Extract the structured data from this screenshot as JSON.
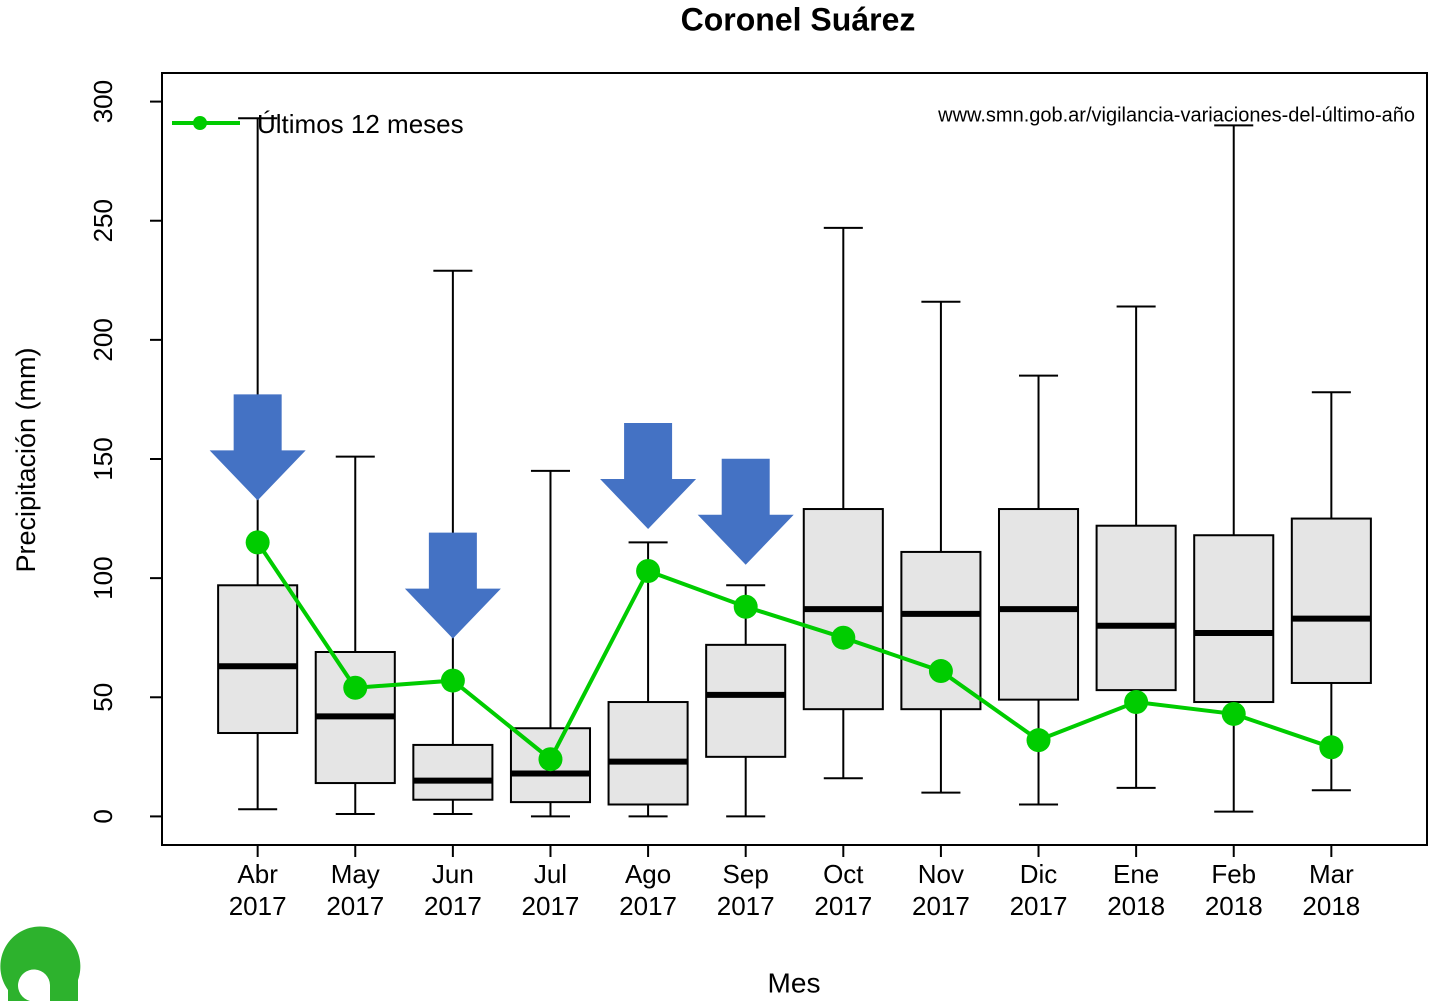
{
  "chart_data": {
    "type": "boxplot",
    "title": "Coronel Suárez",
    "y_label": "Precipitación (mm)",
    "x_label": "Mes",
    "source": "www.smn.gob.ar/vigilancia-variaciones-del-último-año",
    "categories": [
      "Abr\n2017",
      "May\n2017",
      "Jun\n2017",
      "Jul\n2017",
      "Ago\n2017",
      "Sep\n2017",
      "Oct\n2017",
      "Nov\n2017",
      "Dic\n2017",
      "Ene\n2018",
      "Feb\n2018",
      "Mar\n2018"
    ],
    "boxes": {
      "whisker_low": [
        3,
        1,
        1,
        0,
        0,
        0,
        16,
        10,
        5,
        12,
        2,
        11
      ],
      "q1": [
        35,
        14,
        7,
        6,
        5,
        25,
        45,
        45,
        49,
        53,
        48,
        56
      ],
      "median": [
        63,
        42,
        15,
        18,
        23,
        51,
        87,
        85,
        87,
        80,
        77,
        83
      ],
      "q3": [
        97,
        69,
        30,
        37,
        48,
        72,
        129,
        111,
        129,
        122,
        118,
        125
      ],
      "whisker_high": [
        293,
        151,
        229,
        145,
        115,
        97,
        247,
        216,
        185,
        214,
        290,
        178
      ]
    },
    "box_color": "#e5e5e5",
    "series": [
      {
        "name": "Últimos 12 meses",
        "color": "#00cc00",
        "values": [
          115,
          54,
          57,
          24,
          103,
          88,
          75,
          61,
          32,
          48,
          43,
          29
        ]
      }
    ],
    "legend": "topleft",
    "ylim": [
      -12,
      312
    ],
    "yticks": [
      0,
      50,
      100,
      150,
      200,
      250,
      300
    ]
  }
}
